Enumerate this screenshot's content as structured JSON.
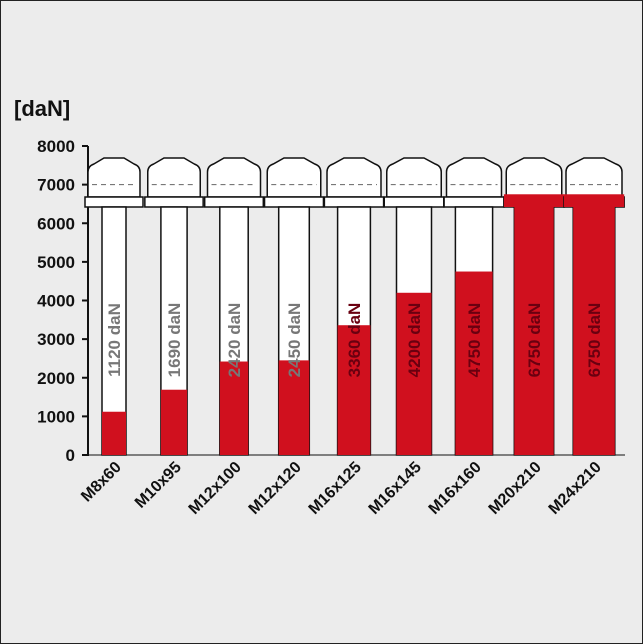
{
  "chart_data": {
    "type": "bar",
    "y_label": "[daN]",
    "categories": [
      "M8x60",
      "M10x95",
      "M12x100",
      "M12x120",
      "M16x125",
      "M16x145",
      "M16x160",
      "M20x210",
      "M24x210"
    ],
    "values": [
      1120,
      1690,
      2420,
      2450,
      3360,
      4200,
      4750,
      6750,
      6750
    ],
    "value_labels": [
      "1120 daN",
      "1690 daN",
      "2420 daN",
      "2450 daN",
      "3360 daN",
      "4200 daN",
      "4750 daN",
      "6750 daN",
      "6750 daN"
    ],
    "color": "#d0101e",
    "ylim": [
      0,
      8000
    ],
    "yticks": [
      0,
      1000,
      2000,
      3000,
      4000,
      5000,
      6000,
      7000,
      8000
    ]
  }
}
